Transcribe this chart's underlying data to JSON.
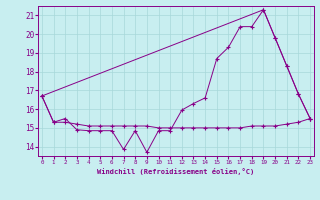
{
  "bg_color": "#c8eef0",
  "grid_color": "#a8d8da",
  "line_color": "#880088",
  "xlabel": "Windchill (Refroidissement éolien,°C)",
  "xlim": [
    0,
    23
  ],
  "ylim": [
    13.5,
    21.5
  ],
  "yticks": [
    14,
    15,
    16,
    17,
    18,
    19,
    20,
    21
  ],
  "xticks": [
    0,
    1,
    2,
    3,
    4,
    5,
    6,
    7,
    8,
    9,
    10,
    11,
    12,
    13,
    14,
    15,
    16,
    17,
    18,
    19,
    20,
    21,
    22,
    23
  ],
  "line1_x": [
    0,
    1,
    2,
    3,
    4,
    5,
    6,
    7,
    8,
    9,
    10,
    11,
    12,
    13,
    14,
    15,
    16,
    17,
    18,
    19,
    20,
    21,
    22,
    23
  ],
  "line1_y": [
    16.7,
    15.3,
    15.5,
    14.9,
    14.85,
    14.85,
    14.85,
    13.85,
    14.85,
    13.7,
    14.85,
    14.85,
    15.95,
    16.3,
    16.6,
    18.7,
    19.3,
    20.4,
    20.4,
    21.3,
    19.8,
    18.3,
    16.8,
    15.5
  ],
  "line2_x": [
    0,
    1,
    2,
    3,
    4,
    5,
    6,
    7,
    8,
    9,
    10,
    11,
    12,
    13,
    14,
    15,
    16,
    17,
    18,
    19,
    20,
    21,
    22,
    23
  ],
  "line2_y": [
    16.7,
    15.3,
    15.3,
    15.2,
    15.1,
    15.1,
    15.1,
    15.1,
    15.1,
    15.1,
    15.0,
    15.0,
    15.0,
    15.0,
    15.0,
    15.0,
    15.0,
    15.0,
    15.1,
    15.1,
    15.1,
    15.2,
    15.3,
    15.5
  ],
  "line3_x": [
    0,
    19,
    20,
    21,
    22,
    23
  ],
  "line3_y": [
    16.7,
    21.3,
    19.8,
    18.3,
    16.8,
    15.5
  ]
}
